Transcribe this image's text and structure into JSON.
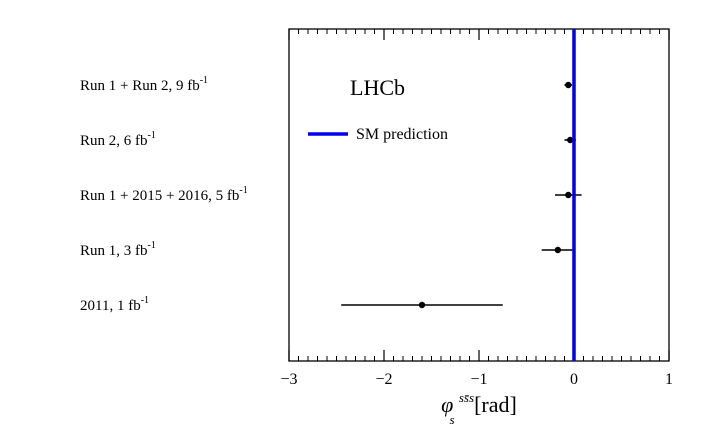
{
  "chart_data": {
    "type": "scatter",
    "title": "",
    "experiment_label": "LHCb",
    "xlabel": {
      "symbol": "φ",
      "superscript": "ss̄s",
      "subscript": "s",
      "unit": "[rad]"
    },
    "xlim": [
      -3,
      1
    ],
    "xticks": [
      {
        "value": -3,
        "label": "−3"
      },
      {
        "value": -2,
        "label": "−2"
      },
      {
        "value": -1,
        "label": "−1"
      },
      {
        "value": 0,
        "label": "0"
      },
      {
        "value": 1,
        "label": "1"
      }
    ],
    "grid": false,
    "legend": {
      "label": "SM prediction",
      "color": "#0000ee",
      "placement": "upper-left"
    },
    "sm_prediction": 0.0,
    "measurements": [
      {
        "label": "Run 1 + Run 2, 9 fb",
        "lumi_exp": "-1",
        "value": -0.06,
        "err_low": 0.04,
        "err_high": 0.04
      },
      {
        "label": "Run 2, 6 fb",
        "lumi_exp": "-1",
        "value": -0.04,
        "err_low": 0.06,
        "err_high": 0.06
      },
      {
        "label": "Run 1 + 2015 + 2016, 5 fb",
        "lumi_exp": "-1",
        "value": -0.06,
        "err_low": 0.14,
        "err_high": 0.14
      },
      {
        "label": "Run 1, 3 fb",
        "lumi_exp": "-1",
        "value": -0.17,
        "err_low": 0.17,
        "err_high": 0.17
      },
      {
        "label": "2011, 1 fb",
        "lumi_exp": "-1",
        "value": -1.6,
        "err_low": 0.85,
        "err_high": 0.85
      }
    ],
    "colors": {
      "points": "#000000",
      "sm_line": "#0000ee",
      "frame": "#000000"
    }
  }
}
